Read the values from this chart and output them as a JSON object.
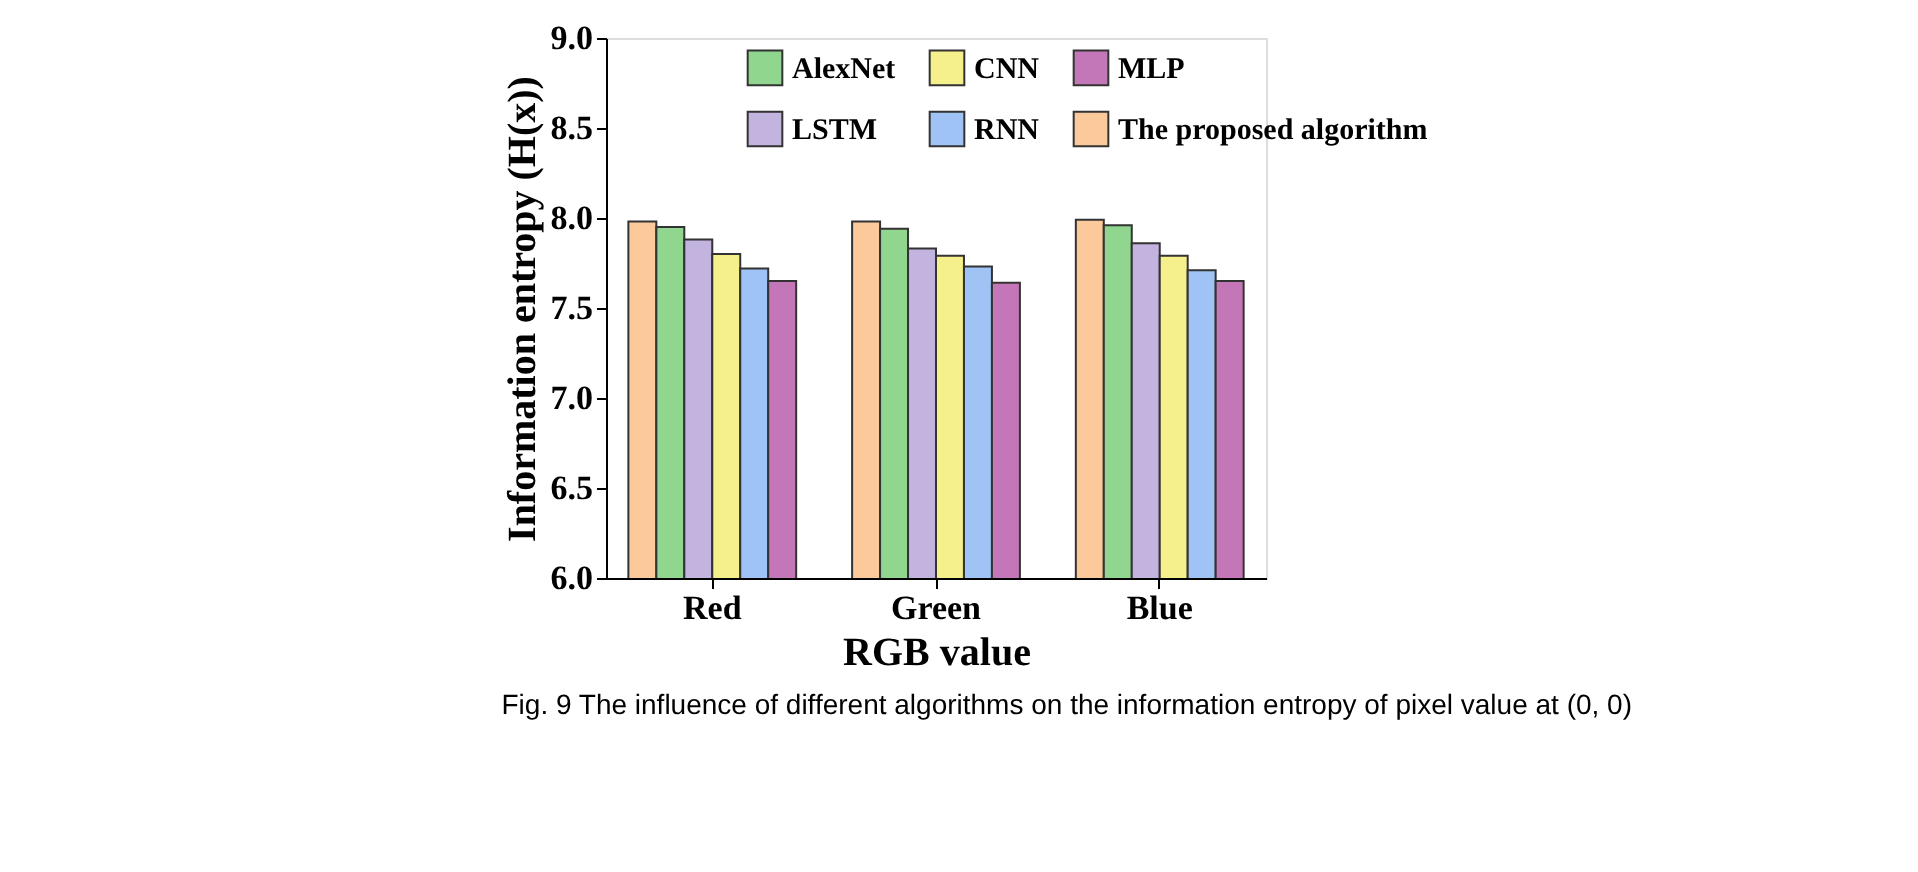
{
  "chart_data": {
    "type": "bar",
    "categories": [
      "Red",
      "Green",
      "Blue"
    ],
    "series": [
      {
        "name": "The proposed algorithm",
        "color": "#fbc99a",
        "values": [
          7.98,
          7.98,
          7.99
        ]
      },
      {
        "name": "AlexNet",
        "color": "#90d68e",
        "values": [
          7.95,
          7.94,
          7.96
        ]
      },
      {
        "name": "LSTM",
        "color": "#c3b3df",
        "values": [
          7.88,
          7.83,
          7.86
        ]
      },
      {
        "name": "CNN",
        "color": "#f6f08c",
        "values": [
          7.8,
          7.79,
          7.79
        ]
      },
      {
        "name": "RNN",
        "color": "#9fc3f5",
        "values": [
          7.72,
          7.73,
          7.71
        ]
      },
      {
        "name": "MLP",
        "color": "#c477b8",
        "values": [
          7.65,
          7.64,
          7.65
        ]
      }
    ],
    "xlabel": "RGB value",
    "ylabel": "Information entropy (H(x))",
    "ylim": [
      6.0,
      9.0
    ],
    "yticks": [
      {
        "value": 6,
        "label": "6.0"
      },
      6.5,
      {
        "value": 7,
        "label": "7.0"
      },
      7.5,
      {
        "value": 8,
        "label": "8.0"
      },
      8.5,
      {
        "value": 9,
        "label": "9.0"
      }
    ],
    "legend": "top",
    "grid": false,
    "annotations": [
      "Fig. 9  The influence of different algorithms on the information entropy of pixel value at (0, 0)"
    ]
  }
}
